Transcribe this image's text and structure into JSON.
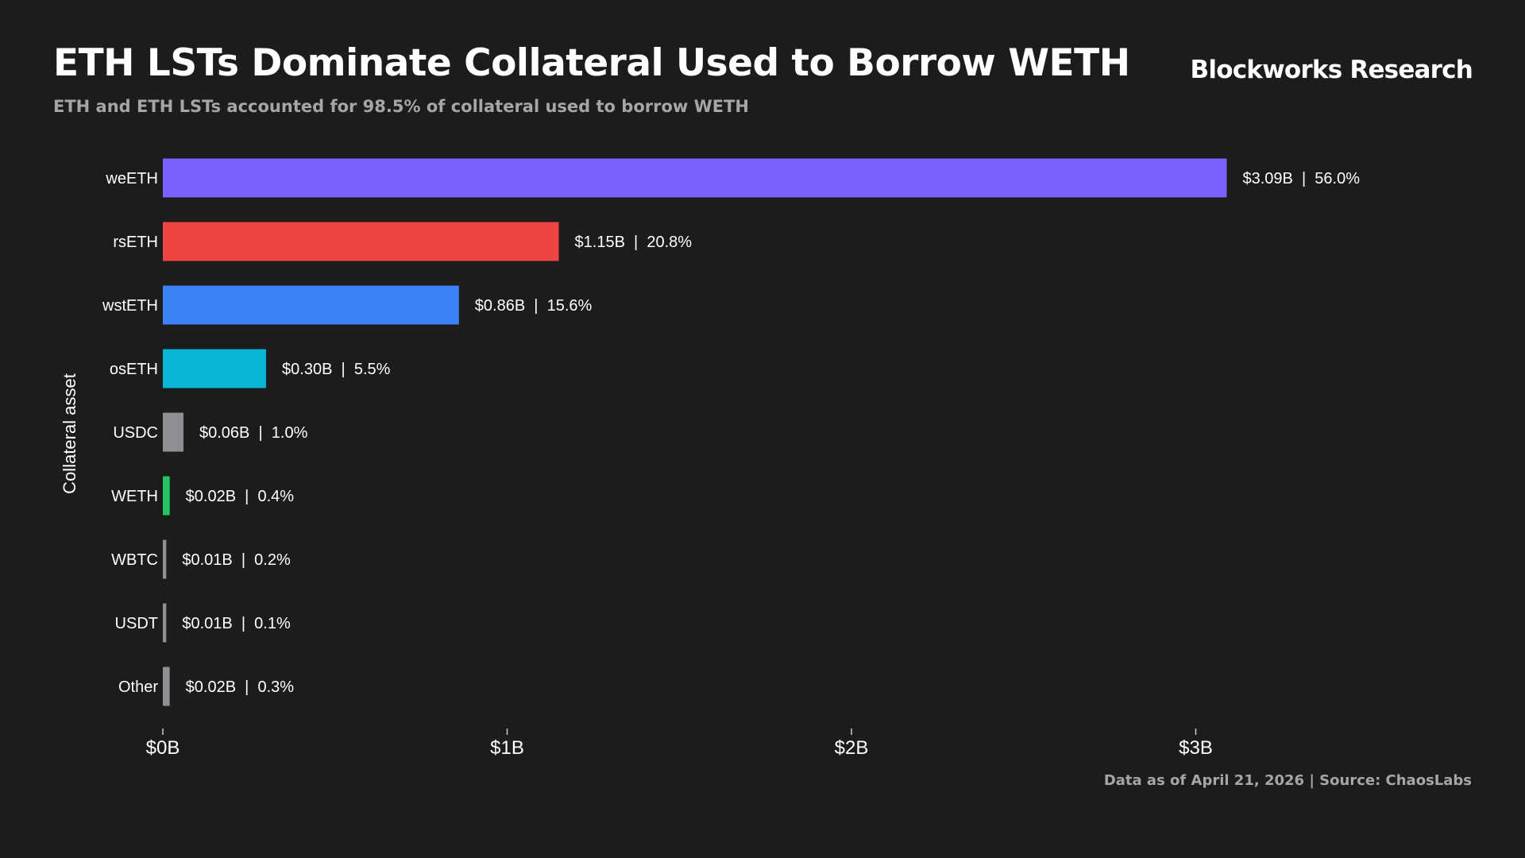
{
  "header": {
    "title": "ETH LSTs Dominate Collateral Used to Borrow WETH",
    "subtitle": "ETH and ETH LSTs accounted for 98.5% of collateral used to borrow WETH",
    "brand": "Blockworks Research"
  },
  "footer": {
    "source": "Data as of April 21, 2026 | Source: ChaosLabs"
  },
  "chart_data": {
    "type": "bar",
    "orientation": "horizontal",
    "title": "ETH LSTs Dominate Collateral Used to Borrow WETH",
    "subtitle": "ETH and ETH LSTs accounted for 98.5% of collateral used to borrow WETH",
    "xlabel": "",
    "ylabel": "Collateral asset",
    "categories": [
      "weETH",
      "rsETH",
      "wstETH",
      "osETH",
      "USDC",
      "WETH",
      "WBTC",
      "USDT",
      "Other"
    ],
    "values": [
      3.09,
      1.15,
      0.86,
      0.3,
      0.06,
      0.02,
      0.01,
      0.01,
      0.02
    ],
    "value_unit": "$B",
    "data_labels": [
      "$3.09B | 56.0%",
      "$1.15B | 20.8%",
      "$0.86B | 15.6%",
      "$0.30B | 5.5%",
      "$0.06B | 1.0%",
      "$0.02B | 0.4%",
      "$0.01B | 0.2%",
      "$0.01B | 0.1%",
      "$0.02B | 0.3%"
    ],
    "colors": [
      "#7b61ff",
      "#ef4444",
      "#3b82f6",
      "#06b6d4",
      "#8e8e93",
      "#22c55e",
      "#8e8e93",
      "#8e8e93",
      "#8e8e93"
    ],
    "label_colors": [
      "#ffffff",
      "#ffffff",
      "#ffffff",
      "#ffffff",
      "#ffffff",
      "#ffffff",
      "#ffffff",
      "#ffffff",
      "#8e8e8e"
    ],
    "xlim": [
      0,
      3.0
    ],
    "xticks": [
      0,
      1,
      2,
      3
    ],
    "xtick_labels": [
      "$0B",
      "$1B",
      "$2B",
      "$3B"
    ],
    "grid": false,
    "legend": "none"
  }
}
